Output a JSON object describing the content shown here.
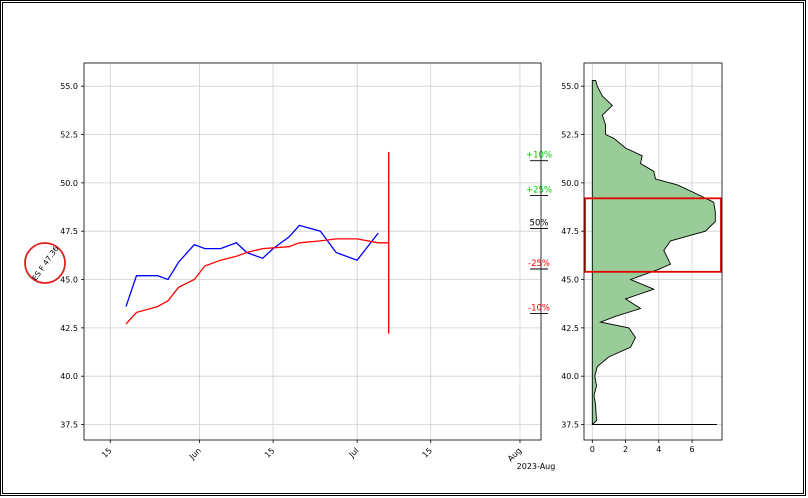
{
  "chart_data": [
    {
      "type": "line",
      "grid": true,
      "ylim": [
        36.7,
        56.2
      ],
      "yticks": [
        "37.5",
        "40.0",
        "42.5",
        "45.0",
        "47.5",
        "50.0",
        "52.5",
        "55.0"
      ],
      "xticks": [
        "15",
        "Jun",
        "15",
        "Jul",
        "15",
        "Aug"
      ],
      "x_offset_label": "2023-Aug",
      "series": [
        {
          "color": "#0000ff",
          "points": [
            [
              "05-18",
              43.6
            ],
            [
              "05-20",
              45.2
            ],
            [
              "05-24",
              45.2
            ],
            [
              "05-26",
              45.0
            ],
            [
              "05-28",
              45.9
            ],
            [
              "05-31",
              46.8
            ],
            [
              "06-02",
              46.6
            ],
            [
              "06-05",
              46.6
            ],
            [
              "06-08",
              46.9
            ],
            [
              "06-10",
              46.4
            ],
            [
              "06-13",
              46.1
            ],
            [
              "06-15",
              46.6
            ],
            [
              "06-18",
              47.2
            ],
            [
              "06-20",
              47.8
            ],
            [
              "06-24",
              47.5
            ],
            [
              "06-27",
              46.4
            ],
            [
              "07-01",
              46.0
            ],
            [
              "07-05",
              47.4
            ]
          ]
        },
        {
          "color": "#ff0000",
          "points": [
            [
              "05-18",
              42.7
            ],
            [
              "05-20",
              43.3
            ],
            [
              "05-24",
              43.6
            ],
            [
              "05-26",
              43.9
            ],
            [
              "05-28",
              44.6
            ],
            [
              "05-31",
              45.0
            ],
            [
              "06-02",
              45.7
            ],
            [
              "06-05",
              46.0
            ],
            [
              "06-08",
              46.2
            ],
            [
              "06-10",
              46.4
            ],
            [
              "06-13",
              46.6
            ],
            [
              "06-18",
              46.7
            ],
            [
              "06-20",
              46.9
            ],
            [
              "06-24",
              47.0
            ],
            [
              "06-27",
              47.1
            ],
            [
              "07-01",
              47.1
            ],
            [
              "07-05",
              46.9
            ],
            [
              "07-07",
              46.9
            ]
          ]
        }
      ],
      "vertical_line": {
        "date": "07-07",
        "y_from": 42.2,
        "y_to": 51.6,
        "color": "#ff0000"
      },
      "levels": [
        {
          "label": "+10%",
          "y": 51.3,
          "color": "#00cc00"
        },
        {
          "label": "+25%",
          "y": 49.5,
          "color": "#00cc00"
        },
        {
          "label": "50%",
          "y": 47.8,
          "color": "#000000"
        },
        {
          "label": "-25%",
          "y": 45.7,
          "color": "#ff0000"
        },
        {
          "label": "-10%",
          "y": 43.4,
          "color": "#ff0000"
        }
      ],
      "marker": {
        "label": "ES F 47.36"
      }
    },
    {
      "type": "area",
      "orientation": "horizontal",
      "grid": true,
      "xlim": [
        -0.5,
        7.8
      ],
      "ylim": [
        36.7,
        56.2
      ],
      "xticks": [
        "0",
        "2",
        "4",
        "6"
      ],
      "yticks": [
        "37.5",
        "40.0",
        "42.5",
        "45.0",
        "47.5",
        "50.0",
        "52.5",
        "55.0"
      ],
      "fill_color": "#99cc99",
      "profile": [
        [
          37.5,
          0.0
        ],
        [
          37.7,
          0.25
        ],
        [
          38.5,
          0.2
        ],
        [
          39.0,
          0.1
        ],
        [
          39.5,
          0.25
        ],
        [
          40.0,
          0.15
        ],
        [
          40.5,
          0.3
        ],
        [
          41.0,
          1.0
        ],
        [
          41.5,
          2.3
        ],
        [
          42.0,
          2.6
        ],
        [
          42.5,
          2.2
        ],
        [
          42.8,
          0.5
        ],
        [
          43.1,
          1.4
        ],
        [
          43.5,
          2.9
        ],
        [
          44.0,
          2.0
        ],
        [
          44.5,
          3.7
        ],
        [
          45.0,
          2.3
        ],
        [
          45.5,
          3.9
        ],
        [
          45.8,
          4.7
        ],
        [
          46.5,
          4.3
        ],
        [
          47.0,
          4.7
        ],
        [
          47.5,
          6.8
        ],
        [
          48.0,
          7.4
        ],
        [
          48.5,
          7.4
        ],
        [
          49.0,
          7.3
        ],
        [
          49.5,
          6.1
        ],
        [
          49.9,
          5.1
        ],
        [
          50.2,
          3.8
        ],
        [
          50.6,
          3.7
        ],
        [
          51.0,
          2.9
        ],
        [
          51.4,
          3.0
        ],
        [
          51.8,
          2.0
        ],
        [
          52.3,
          1.3
        ],
        [
          52.5,
          0.8
        ],
        [
          53.0,
          0.8
        ],
        [
          53.5,
          0.6
        ],
        [
          54.0,
          1.2
        ],
        [
          54.5,
          0.6
        ],
        [
          55.0,
          0.3
        ],
        [
          55.3,
          0.2
        ]
      ],
      "value_area": [
        45.4,
        49.2
      ],
      "baseline_y": 37.5
    }
  ]
}
